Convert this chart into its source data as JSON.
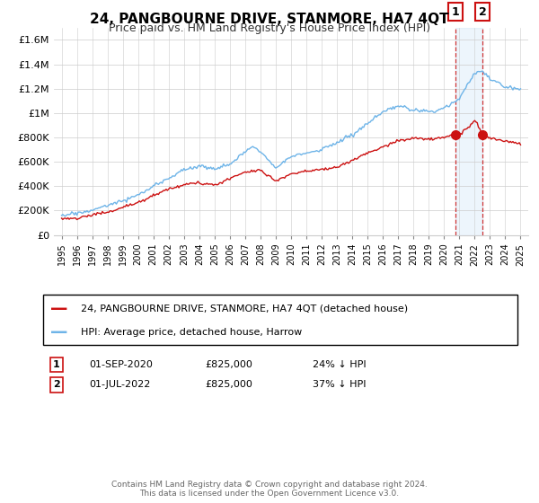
{
  "title": "24, PANGBOURNE DRIVE, STANMORE, HA7 4QT",
  "subtitle": "Price paid vs. HM Land Registry's House Price Index (HPI)",
  "ylabel_ticks": [
    "£0",
    "£200K",
    "£400K",
    "£600K",
    "£800K",
    "£1M",
    "£1.2M",
    "£1.4M",
    "£1.6M"
  ],
  "ylabel_values": [
    0,
    200000,
    400000,
    600000,
    800000,
    1000000,
    1200000,
    1400000,
    1600000
  ],
  "ylim": [
    0,
    1700000
  ],
  "xlim_start": 1994.5,
  "xlim_end": 2025.5,
  "hpi_color": "#6EB4E8",
  "price_color": "#CC1111",
  "transaction1_date": "01-SEP-2020",
  "transaction1_price": "£825,000",
  "transaction1_hpi": "24% ↓ HPI",
  "transaction2_date": "01-JUL-2022",
  "transaction2_price": "£825,000",
  "transaction2_hpi": "37% ↓ HPI",
  "legend_label_price": "24, PANGBOURNE DRIVE, STANMORE, HA7 4QT (detached house)",
  "legend_label_hpi": "HPI: Average price, detached house, Harrow",
  "footer": "Contains HM Land Registry data © Crown copyright and database right 2024.\nThis data is licensed under the Open Government Licence v3.0.",
  "vline1_x": 2020.75,
  "vline2_x": 2022.5,
  "marker1_y": 825000,
  "marker2_y": 825000
}
